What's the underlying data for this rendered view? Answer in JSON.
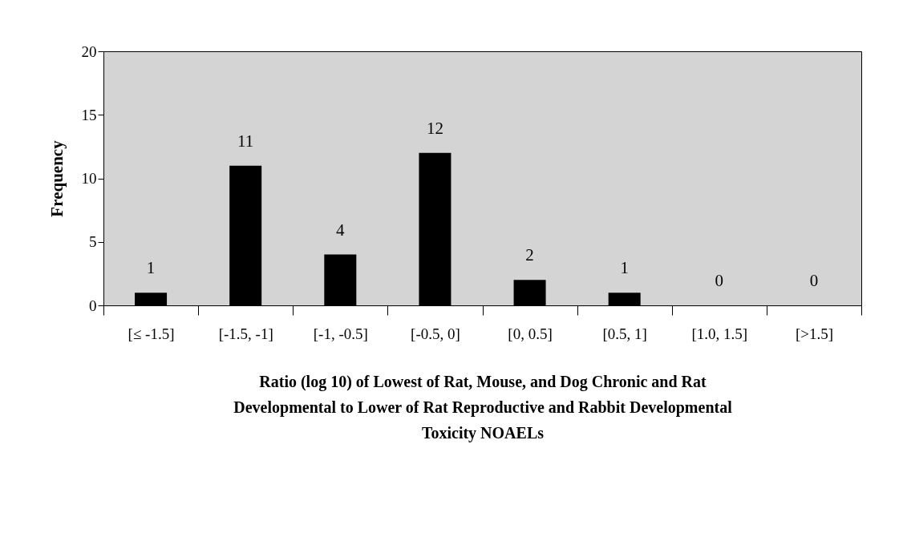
{
  "chart_data": {
    "type": "bar",
    "categories": [
      "[≤ -1.5]",
      "[-1.5, -1]",
      "[-1, -0.5]",
      "[-0.5, 0]",
      "[0, 0.5]",
      "[0.5, 1]",
      "[1.0, 1.5]",
      "[>1.5]"
    ],
    "values": [
      1,
      11,
      4,
      12,
      2,
      1,
      0,
      0
    ],
    "color": "#000000",
    "ylim": [
      0,
      20
    ],
    "yticks": [
      0,
      5,
      10,
      15,
      20
    ],
    "ylabel": "Frequency",
    "xlabel": "Ratio (log 10) of Lowest of Rat, Mouse, and Dog Chronic and Rat Developmental to Lower of Rat Reproductive and Rabbit Developmental Toxicity NOAELs",
    "data_labels": true,
    "grid": false
  }
}
